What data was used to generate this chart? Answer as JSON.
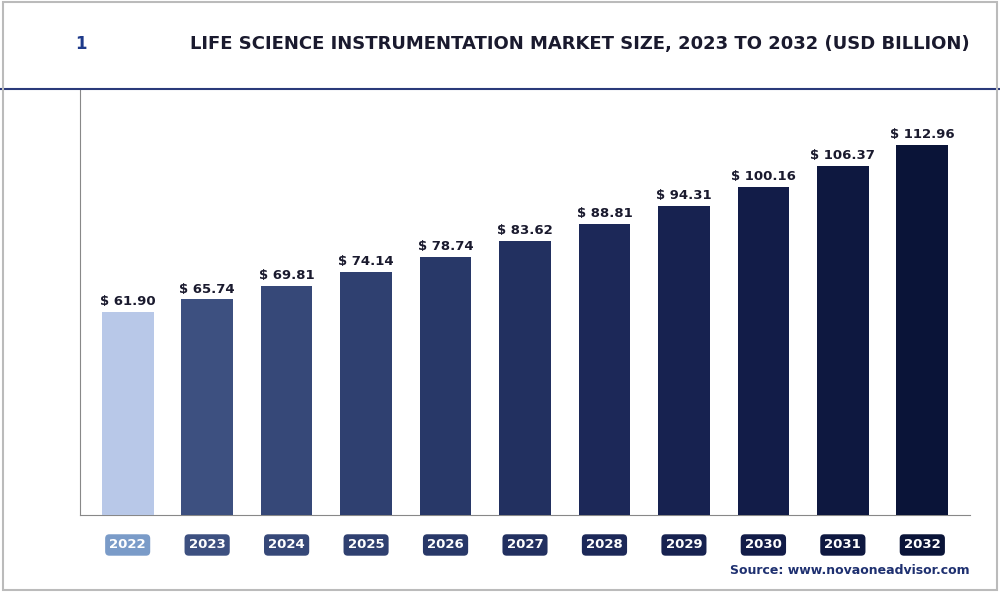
{
  "years": [
    "2022",
    "2023",
    "2024",
    "2025",
    "2026",
    "2027",
    "2028",
    "2029",
    "2030",
    "2031",
    "2032"
  ],
  "values": [
    61.9,
    65.74,
    69.81,
    74.14,
    78.74,
    83.62,
    88.81,
    94.31,
    100.16,
    106.37,
    112.96
  ],
  "bar_colors": [
    "#b8c8e8",
    "#3d5080",
    "#364878",
    "#2f4070",
    "#283868",
    "#223060",
    "#1c2858",
    "#172250",
    "#121c48",
    "#0e1840",
    "#0a1438"
  ],
  "tick_bg_colors": [
    "#7a9bc8",
    "#3d5080",
    "#364878",
    "#2f4070",
    "#283868",
    "#223060",
    "#1c2858",
    "#172250",
    "#121c48",
    "#0e1840",
    "#0a1438"
  ],
  "title": "LIFE SCIENCE INSTRUMENTATION MARKET SIZE, 2023 TO 2032 (USD BILLION)",
  "ylim": [
    0,
    130
  ],
  "yticks": [
    0,
    20,
    40,
    60,
    80,
    100,
    120
  ],
  "bg_color": "#ffffff",
  "plot_bg_color": "#ffffff",
  "grid_color": "#d8d8d8",
  "bar_label_fontsize": 9.5,
  "tick_fontsize": 9.5,
  "source_text": "Source: www.novaoneadvisor.com",
  "header_bg": "#1e3a8a",
  "logo_bg": "#1e3a8a",
  "title_color": "#1a1a2e",
  "label_color": "#1a1a2e",
  "source_color": "#1e3070"
}
